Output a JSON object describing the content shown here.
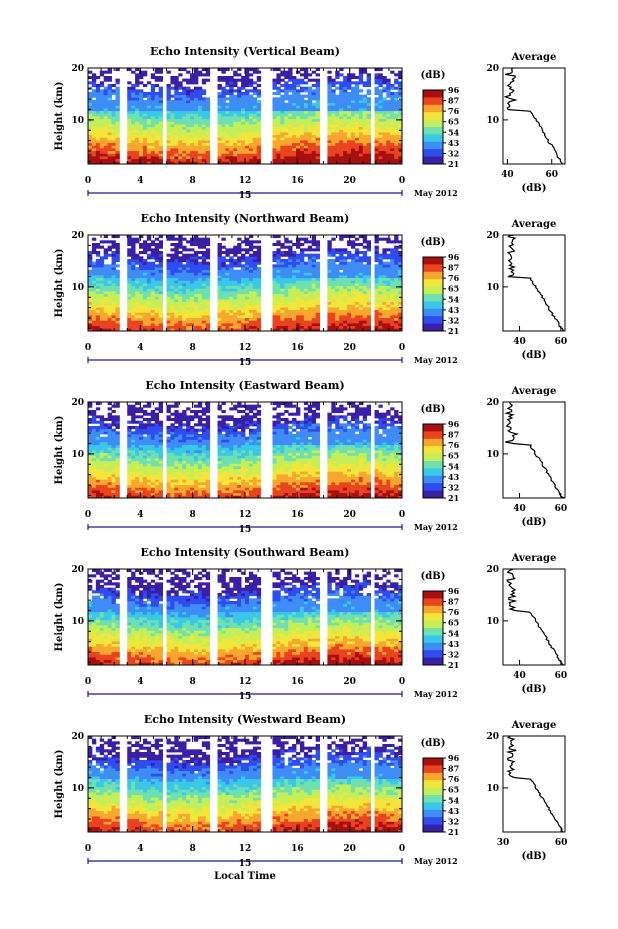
{
  "figure": {
    "date_label": "May 2012",
    "xlabel_bottom": "Local Time"
  },
  "chart_data": [
    {
      "type": "heatmap",
      "title": "Echo Intensity (Vertical Beam)",
      "ylabel": "Height (km)",
      "x_ticks": [
        "0",
        "4",
        "8",
        "12",
        "16",
        "20",
        "0"
      ],
      "y_ticks": [
        "20",
        "10"
      ],
      "xlim": [
        0,
        24
      ],
      "ylim": [
        1.5,
        20
      ],
      "day_label": "15",
      "colorbar": {
        "unit": "(dB)",
        "ticks": [
          "96",
          "87",
          "76",
          "65",
          "54",
          "43",
          "32",
          "21"
        ],
        "range": [
          21,
          96
        ]
      },
      "average": {
        "title": "Average",
        "xlabel": "(dB)",
        "x_ticks": [
          "40",
          "60"
        ],
        "y_ticks": [
          "20",
          "10"
        ],
        "xlim": [
          38,
          66
        ]
      }
    },
    {
      "type": "heatmap",
      "title": "Echo Intensity (Northward Beam)",
      "ylabel": "Height (km)",
      "x_ticks": [
        "0",
        "4",
        "8",
        "12",
        "16",
        "20",
        "0"
      ],
      "y_ticks": [
        "20",
        "10"
      ],
      "xlim": [
        0,
        24
      ],
      "ylim": [
        1.5,
        20
      ],
      "day_label": "15",
      "colorbar": {
        "unit": "(dB)",
        "ticks": [
          "96",
          "87",
          "76",
          "65",
          "54",
          "43",
          "32",
          "21"
        ],
        "range": [
          21,
          96
        ]
      },
      "average": {
        "title": "Average",
        "xlabel": "(dB)",
        "x_ticks": [
          "40",
          "60"
        ],
        "y_ticks": [
          "20",
          "10"
        ],
        "xlim": [
          32,
          62
        ]
      }
    },
    {
      "type": "heatmap",
      "title": "Echo Intensity (Eastward Beam)",
      "ylabel": "Height (km)",
      "x_ticks": [
        "0",
        "4",
        "8",
        "12",
        "16",
        "20",
        "0"
      ],
      "y_ticks": [
        "20",
        "10"
      ],
      "xlim": [
        0,
        24
      ],
      "ylim": [
        1.5,
        20
      ],
      "day_label": "15",
      "colorbar": {
        "unit": "(dB)",
        "ticks": [
          "96",
          "87",
          "76",
          "65",
          "54",
          "43",
          "32",
          "21"
        ],
        "range": [
          21,
          96
        ]
      },
      "average": {
        "title": "Average",
        "xlabel": "(dB)",
        "x_ticks": [
          "40",
          "60"
        ],
        "y_ticks": [
          "20",
          "10"
        ],
        "xlim": [
          32,
          62
        ]
      }
    },
    {
      "type": "heatmap",
      "title": "Echo Intensity (Southward Beam)",
      "ylabel": "Height (km)",
      "x_ticks": [
        "0",
        "4",
        "8",
        "12",
        "16",
        "20",
        "0"
      ],
      "y_ticks": [
        "20",
        "10"
      ],
      "xlim": [
        0,
        24
      ],
      "ylim": [
        1.5,
        20
      ],
      "day_label": "15",
      "colorbar": {
        "unit": "(dB)",
        "ticks": [
          "96",
          "87",
          "76",
          "65",
          "54",
          "43",
          "32",
          "21"
        ],
        "range": [
          21,
          96
        ]
      },
      "average": {
        "title": "Average",
        "xlabel": "(dB)",
        "x_ticks": [
          "40",
          "60"
        ],
        "y_ticks": [
          "20",
          "10"
        ],
        "xlim": [
          32,
          62
        ]
      }
    },
    {
      "type": "heatmap",
      "title": "Echo Intensity (Westward Beam)",
      "ylabel": "Height (km)",
      "x_ticks": [
        "0",
        "4",
        "8",
        "12",
        "16",
        "20",
        "0"
      ],
      "y_ticks": [
        "20",
        "10"
      ],
      "xlim": [
        0,
        24
      ],
      "ylim": [
        1.5,
        20
      ],
      "day_label": "15",
      "colorbar": {
        "unit": "(dB)",
        "ticks": [
          "96",
          "87",
          "76",
          "65",
          "54",
          "43",
          "32",
          "21"
        ],
        "range": [
          21,
          96
        ]
      },
      "average": {
        "title": "Average",
        "xlabel": "(dB)",
        "x_ticks": [
          "30",
          "60"
        ],
        "y_ticks": [
          "20",
          "10"
        ],
        "xlim": [
          30,
          62
        ]
      }
    }
  ],
  "gaps_hours": [
    [
      2.4,
      2.9
    ],
    [
      5.6,
      6.0
    ],
    [
      9.4,
      9.8
    ],
    [
      13.2,
      14.0
    ],
    [
      17.6,
      18.3
    ],
    [
      21.6,
      22.0
    ]
  ],
  "colormap": [
    "#3a1fa6",
    "#2f4cf0",
    "#3e8cf5",
    "#39c8e8",
    "#6fe0b0",
    "#c2ef5a",
    "#f3e63a",
    "#f8a72e",
    "#e9441f",
    "#a81010"
  ]
}
